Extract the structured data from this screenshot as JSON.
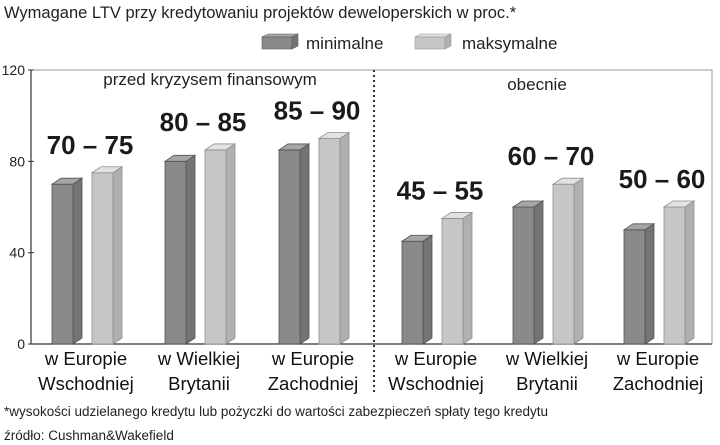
{
  "chart_data": {
    "type": "bar",
    "title": "Wymagane LTV przy kredytowaniu projektów deweloperskich w proc.*",
    "legend": [
      {
        "key": "min",
        "label": "minimalne",
        "color": "#8a8a8a"
      },
      {
        "key": "max",
        "label": "maksymalne",
        "color": "#c6c6c6"
      }
    ],
    "ylim": [
      0,
      120
    ],
    "yticks": [
      "0",
      "40",
      "80",
      "120"
    ],
    "groups": [
      {
        "period": "przed kryzysem finansowym",
        "categories": [
          {
            "line1": "w Europie",
            "line2": "Wschodniej",
            "min": 70,
            "max": 75,
            "range_label": "70 – 75"
          },
          {
            "line1": "w Wielkiej",
            "line2": "Brytanii",
            "min": 80,
            "max": 85,
            "range_label": "80 – 85"
          },
          {
            "line1": "w Europie",
            "line2": "Zachodniej",
            "min": 85,
            "max": 90,
            "range_label": "85 – 90"
          }
        ]
      },
      {
        "period": "obecnie",
        "categories": [
          {
            "line1": "w Europie",
            "line2": "Wschodniej",
            "min": 45,
            "max": 55,
            "range_label": "45 – 55"
          },
          {
            "line1": "w Wielkiej",
            "line2": "Brytanii",
            "min": 60,
            "max": 70,
            "range_label": "60 – 70"
          },
          {
            "line1": "w Europie",
            "line2": "Zachodniej",
            "min": 50,
            "max": 60,
            "range_label": "50 – 60"
          }
        ]
      }
    ],
    "footnote": "*wysokości udzielanego kredytu lub pożyczki do wartości zabezpieczeń spłaty tego kredytu",
    "source": "źródło: Cushman&Wakefield"
  }
}
